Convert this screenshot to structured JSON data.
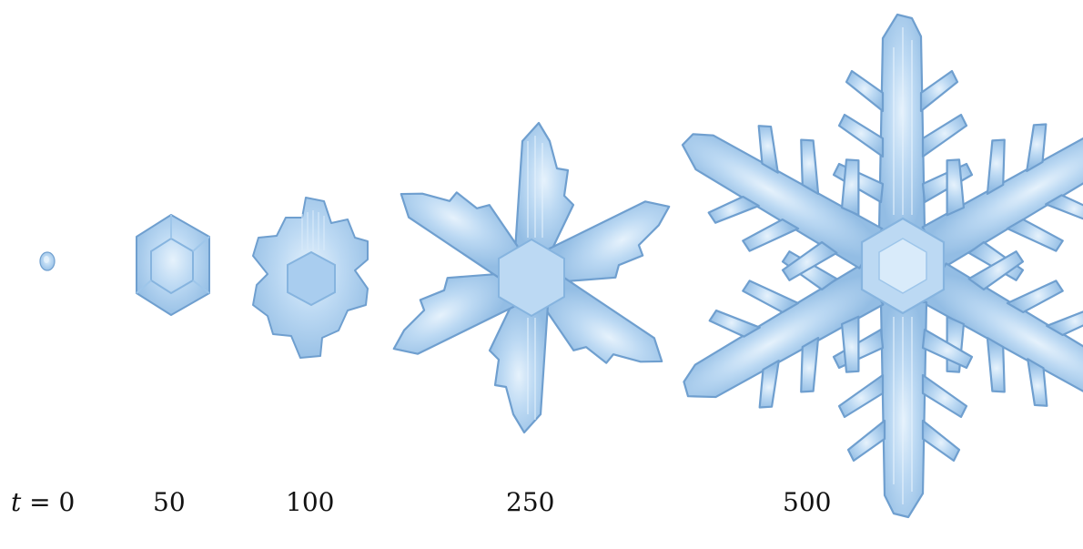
{
  "figure": {
    "colors": {
      "ice_fill": "#a9cdef",
      "ice_mid": "#c6e0f6",
      "ice_dark": "#86b4df",
      "ice_highlight": "#e6f2fc",
      "ice_edge": "#6f9fcf",
      "background": "#ffffff"
    },
    "labels": {
      "t0_var": "t",
      "t0_eq": " = 0",
      "t50": "50",
      "t100": "100",
      "t250": "250",
      "t500": "500"
    }
  }
}
